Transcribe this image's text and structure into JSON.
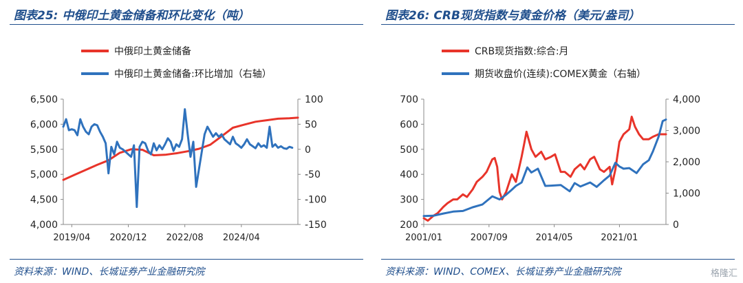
{
  "charts": [
    {
      "title": "图表25:  中俄印土黄金储备和环比变化（吨）",
      "source": "资料来源：WIND、长城证券产业金融研究院",
      "chart_data": {
        "type": "line",
        "x_ticks": [
          "2019/04",
          "2020/12",
          "2022/08",
          "2024/04"
        ],
        "x_range": [
          "2019/01",
          "2025/12"
        ],
        "y_left": {
          "ticks": [
            "6,500",
            "6,000",
            "5,500",
            "5,000",
            "4,500",
            "4,000"
          ],
          "range": [
            4000,
            6500
          ]
        },
        "y_right": {
          "ticks": [
            "100",
            "50",
            "0",
            "-50",
            "-100",
            "-150"
          ],
          "range": [
            -150,
            100
          ]
        },
        "series": [
          {
            "name": "中俄印土黄金储备",
            "axis": "left",
            "color": "#e8342a",
            "x": [
              "2019/01",
              "2019/05",
              "2019/09",
              "2020/01",
              "2020/05",
              "2020/09",
              "2021/01",
              "2021/05",
              "2021/09",
              "2022/01",
              "2022/05",
              "2022/09",
              "2023/01",
              "2023/05",
              "2023/09",
              "2024/01",
              "2024/05",
              "2024/09",
              "2025/01",
              "2025/05",
              "2025/09",
              "2025/12"
            ],
            "values": [
              4890,
              4990,
              5090,
              5190,
              5280,
              5430,
              5500,
              5490,
              5380,
              5390,
              5420,
              5460,
              5510,
              5590,
              5760,
              5930,
              5990,
              6050,
              6080,
              6110,
              6120,
              6130
            ]
          },
          {
            "name": "中俄印土黄金储备:环比增加（右轴）",
            "axis": "right",
            "color": "#2f72bd",
            "x": [
              "2019/01",
              "2019/02",
              "2019/03",
              "2019/04",
              "2019/05",
              "2019/06",
              "2019/07",
              "2019/08",
              "2019/09",
              "2019/10",
              "2019/11",
              "2019/12",
              "2020/01",
              "2020/02",
              "2020/03",
              "2020/04",
              "2020/05",
              "2020/06",
              "2020/07",
              "2020/08",
              "2020/09",
              "2020/10",
              "2020/11",
              "2020/12",
              "2021/01",
              "2021/02",
              "2021/03",
              "2021/04",
              "2021/05",
              "2021/06",
              "2021/07",
              "2021/08",
              "2021/09",
              "2021/10",
              "2021/11",
              "2021/12",
              "2022/01",
              "2022/02",
              "2022/03",
              "2022/04",
              "2022/05",
              "2022/06",
              "2022/07",
              "2022/08",
              "2022/09",
              "2022/10",
              "2022/11",
              "2022/12",
              "2023/01",
              "2023/02",
              "2023/03",
              "2023/04",
              "2023/05",
              "2023/06",
              "2023/07",
              "2023/08",
              "2023/09",
              "2023/10",
              "2023/11",
              "2023/12",
              "2024/01",
              "2024/02",
              "2024/03",
              "2024/04",
              "2024/05",
              "2024/06",
              "2024/07",
              "2024/08",
              "2024/09",
              "2024/10",
              "2024/11",
              "2024/12",
              "2025/01",
              "2025/02",
              "2025/03",
              "2025/04",
              "2025/05",
              "2025/06",
              "2025/07",
              "2025/08",
              "2025/09",
              "2025/10"
            ],
            "values": [
              45,
              60,
              38,
              40,
              38,
              28,
              60,
              45,
              35,
              30,
              45,
              50,
              48,
              35,
              25,
              12,
              -48,
              5,
              -10,
              15,
              3,
              0,
              -5,
              -10,
              -15,
              8,
              -115,
              5,
              15,
              12,
              -3,
              -10,
              12,
              -2,
              8,
              0,
              10,
              22,
              15,
              -3,
              10,
              5,
              20,
              80,
              30,
              -15,
              15,
              -75,
              -40,
              -5,
              30,
              45,
              35,
              25,
              32,
              25,
              30,
              20,
              15,
              10,
              25,
              12,
              8,
              3,
              10,
              20,
              10,
              6,
              2,
              12,
              5,
              8,
              3,
              45,
              5,
              10,
              3,
              6,
              2,
              1,
              5,
              3
            ]
          }
        ]
      }
    },
    {
      "title": "图表26:  CRB现货指数与黄金价格（美元/盎司）",
      "source": "资料来源：WIND、COMEX、长城证券产业金融研究院",
      "chart_data": {
        "type": "line",
        "x_ticks": [
          "2001/01",
          "2007/09",
          "2014/05",
          "2021/01"
        ],
        "x_range": [
          "2001/01",
          "2025/10"
        ],
        "y_left": {
          "ticks": [
            "700",
            "600",
            "500",
            "400",
            "300",
            "200"
          ],
          "range": [
            200,
            700
          ]
        },
        "y_right": {
          "ticks": [
            "4,000",
            "3,000",
            "2,000",
            "1,000",
            "0"
          ],
          "range": [
            0,
            4000
          ]
        },
        "series": [
          {
            "name": "CRB现货指数:综合:月",
            "axis": "left",
            "color": "#e8342a",
            "x": [
              "2001/01",
              "2001/06",
              "2002/01",
              "2002/06",
              "2003/01",
              "2003/06",
              "2004/01",
              "2004/06",
              "2005/01",
              "2005/06",
              "2006/01",
              "2006/06",
              "2007/01",
              "2007/06",
              "2008/01",
              "2008/04",
              "2008/07",
              "2008/10",
              "2009/01",
              "2009/06",
              "2010/01",
              "2010/06",
              "2011/01",
              "2011/04",
              "2011/07",
              "2012/01",
              "2012/06",
              "2013/01",
              "2013/06",
              "2014/01",
              "2014/06",
              "2015/01",
              "2015/06",
              "2016/01",
              "2016/06",
              "2017/01",
              "2017/06",
              "2018/01",
              "2018/06",
              "2019/01",
              "2019/06",
              "2020/01",
              "2020/04",
              "2020/08",
              "2021/01",
              "2021/06",
              "2022/01",
              "2022/04",
              "2022/08",
              "2023/01",
              "2023/06",
              "2024/01",
              "2024/06",
              "2025/01",
              "2025/06",
              "2025/10"
            ],
            "values": [
              225,
              215,
              235,
              245,
              270,
              285,
              300,
              300,
              320,
              310,
              340,
              370,
              390,
              410,
              460,
              465,
              430,
              330,
              300,
              330,
              400,
              370,
              470,
              520,
              570,
              500,
              470,
              490,
              460,
              470,
              480,
              410,
              410,
              390,
              420,
              440,
              420,
              460,
              470,
              420,
              410,
              430,
              360,
              420,
              530,
              560,
              580,
              630,
              590,
              560,
              540,
              540,
              550,
              560,
              560,
              560
            ]
          },
          {
            "name": "期货收盘价(连续):COMEX黄金（右轴）",
            "axis": "right",
            "color": "#2f72bd",
            "x": [
              "2001/01",
              "2002/01",
              "2003/01",
              "2004/01",
              "2005/01",
              "2006/01",
              "2007/01",
              "2008/01",
              "2008/10",
              "2009/06",
              "2010/01",
              "2010/06",
              "2011/01",
              "2011/08",
              "2012/01",
              "2012/09",
              "2013/06",
              "2014/01",
              "2015/01",
              "2015/12",
              "2016/06",
              "2017/01",
              "2018/01",
              "2018/09",
              "2019/06",
              "2020/01",
              "2020/08",
              "2021/01",
              "2021/06",
              "2022/01",
              "2022/10",
              "2023/06",
              "2024/01",
              "2024/06",
              "2025/01",
              "2025/06",
              "2025/10"
            ],
            "values": [
              270,
              280,
              350,
              410,
              430,
              550,
              640,
              900,
              800,
              950,
              1110,
              1230,
              1340,
              1820,
              1660,
              1780,
              1230,
              1240,
              1260,
              1060,
              1320,
              1210,
              1340,
              1200,
              1410,
              1560,
              1970,
              1850,
              1780,
              1800,
              1640,
              1920,
              2050,
              2330,
              2800,
              3300,
              3350
            ]
          }
        ]
      }
    }
  ],
  "watermark": "格隆汇"
}
